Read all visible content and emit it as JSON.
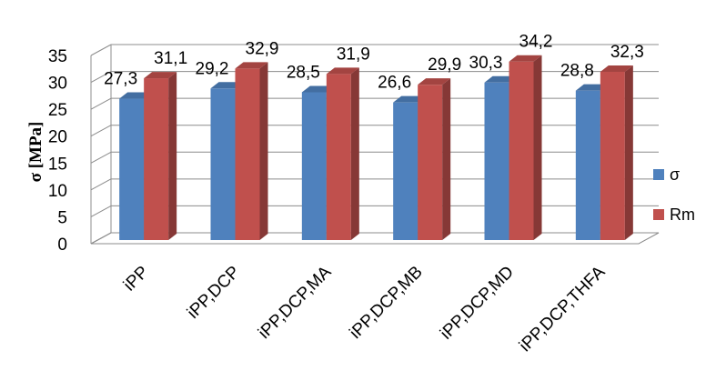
{
  "chart_data": {
    "type": "bar",
    "categories": [
      "iPP",
      "iPP,DCP",
      "iPP,DCP,MA",
      "iPP,DCP,MB",
      "iPP,DCP,MD",
      "iPP,DCP,THFA"
    ],
    "series": [
      {
        "name": "σ",
        "color": "#4F81BD",
        "values": [
          27.3,
          29.2,
          28.5,
          26.6,
          30.3,
          28.8
        ],
        "labels": [
          "27,3",
          "29,2",
          "28,5",
          "26,6",
          "30,3",
          "28,8"
        ]
      },
      {
        "name": "Rm",
        "color": "#C0504D",
        "values": [
          31.1,
          32.9,
          31.9,
          29.9,
          34.2,
          32.3
        ],
        "labels": [
          "31,1",
          "32,9",
          "31,9",
          "29,9",
          "34,2",
          "32,3"
        ]
      }
    ],
    "ylabel": "σ [MPa]",
    "ylim": [
      0,
      35
    ],
    "yticks": [
      0,
      5,
      10,
      15,
      20,
      25,
      30,
      35
    ],
    "grid": true,
    "legend": "right",
    "style": "3d-clustered-column"
  }
}
